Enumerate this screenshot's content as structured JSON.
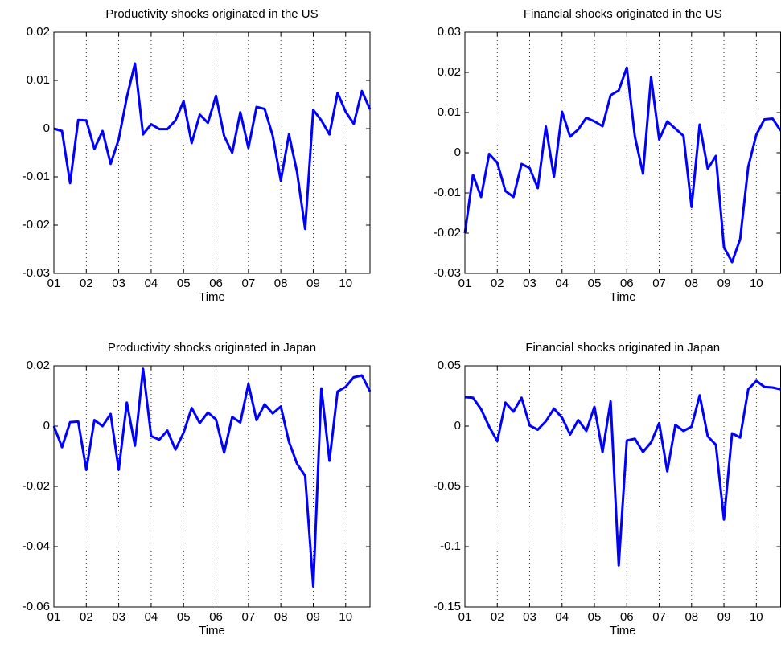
{
  "chart_data": [
    {
      "type": "line",
      "title": "Productivity shocks originated in the US",
      "x_label": "Time",
      "x": [
        1,
        1.25,
        1.5,
        1.75,
        2,
        2.25,
        2.5,
        2.75,
        3,
        3.25,
        3.5,
        3.75,
        4,
        4.25,
        4.5,
        4.75,
        5,
        5.25,
        5.5,
        5.75,
        6,
        6.25,
        6.5,
        6.75,
        7,
        7.25,
        7.5,
        7.75,
        8,
        8.25,
        8.5,
        8.75,
        9,
        9.25,
        9.5,
        9.75,
        10,
        10.25,
        10.5,
        10.75
      ],
      "values": [
        0,
        -0.0005,
        -0.0113,
        0.0018,
        0.0017,
        -0.0042,
        -0.0005,
        -0.0073,
        -0.0022,
        0.0065,
        0.0135,
        -0.0012,
        0.0009,
        -0.0001,
        -0.0001,
        0.0017,
        0.0057,
        -0.003,
        0.0029,
        0.0012,
        0.0068,
        -0.0015,
        -0.005,
        0.0034,
        -0.004,
        0.0045,
        0.0041,
        -0.0015,
        -0.0108,
        -0.0012,
        -0.009,
        -0.0208,
        0.0039,
        0.0017,
        -0.0012,
        0.0074,
        0.0035,
        0.001,
        0.0078,
        0.004
      ],
      "color": "#0000ff",
      "xlim": [
        1,
        10.75
      ],
      "xticks": [
        {
          "value": 1,
          "label": "01"
        },
        {
          "value": 2,
          "label": "02"
        },
        {
          "value": 3,
          "label": "03"
        },
        {
          "value": 4,
          "label": "04"
        },
        {
          "value": 5,
          "label": "05"
        },
        {
          "value": 6,
          "label": "06"
        },
        {
          "value": 7,
          "label": "07"
        },
        {
          "value": 8,
          "label": "08"
        },
        {
          "value": 9,
          "label": "09"
        },
        {
          "value": 10,
          "label": "10"
        }
      ],
      "ylim": [
        -0.03,
        0.02
      ],
      "yticks": [
        -0.03,
        -0.02,
        -0.01,
        0,
        0.01,
        0.02
      ],
      "grid": true
    },
    {
      "type": "line",
      "title": "Financial shocks originated in the US",
      "x_label": "Time",
      "x": [
        1,
        1.25,
        1.5,
        1.75,
        2,
        2.25,
        2.5,
        2.75,
        3,
        3.25,
        3.5,
        3.75,
        4,
        4.25,
        4.5,
        4.75,
        5,
        5.25,
        5.5,
        5.75,
        6,
        6.25,
        6.5,
        6.75,
        7,
        7.25,
        7.5,
        7.75,
        8,
        8.25,
        8.5,
        8.75,
        9,
        9.25,
        9.5,
        9.75,
        10,
        10.25,
        10.5,
        10.75
      ],
      "values": [
        -0.02,
        -0.0055,
        -0.011,
        -0.0003,
        -0.0025,
        -0.0095,
        -0.011,
        -0.0028,
        -0.0038,
        -0.0088,
        0.0065,
        -0.006,
        0.0102,
        0.004,
        0.0058,
        0.0087,
        0.0078,
        0.0066,
        0.0143,
        0.0155,
        0.0212,
        0.004,
        -0.0052,
        0.0188,
        0.0033,
        0.0078,
        0.006,
        0.0042,
        -0.0135,
        0.007,
        -0.004,
        -0.0008,
        -0.0235,
        -0.0272,
        -0.0215,
        -0.0035,
        0.0045,
        0.0083,
        0.0085,
        0.0055
      ],
      "color": "#0000ff",
      "xlim": [
        1,
        10.75
      ],
      "xticks": [
        {
          "value": 1,
          "label": "01"
        },
        {
          "value": 2,
          "label": "02"
        },
        {
          "value": 3,
          "label": "03"
        },
        {
          "value": 4,
          "label": "04"
        },
        {
          "value": 5,
          "label": "05"
        },
        {
          "value": 6,
          "label": "06"
        },
        {
          "value": 7,
          "label": "07"
        },
        {
          "value": 8,
          "label": "08"
        },
        {
          "value": 9,
          "label": "09"
        },
        {
          "value": 10,
          "label": "10"
        }
      ],
      "ylim": [
        -0.03,
        0.03
      ],
      "yticks": [
        -0.03,
        -0.02,
        -0.01,
        0,
        0.01,
        0.02,
        0.03
      ],
      "grid": true
    },
    {
      "type": "line",
      "title": "Productivity shocks originated in Japan",
      "x_label": "Time",
      "x": [
        1,
        1.25,
        1.5,
        1.75,
        2,
        2.25,
        2.5,
        2.75,
        3,
        3.25,
        3.5,
        3.75,
        4,
        4.25,
        4.5,
        4.75,
        5,
        5.25,
        5.5,
        5.75,
        6,
        6.25,
        6.5,
        6.75,
        7,
        7.25,
        7.5,
        7.75,
        8,
        8.25,
        8.5,
        8.75,
        9,
        9.25,
        9.5,
        9.75,
        10,
        10.25,
        10.5,
        10.75
      ],
      "values": [
        0,
        -0.007,
        0.0013,
        0.0015,
        -0.0145,
        0.002,
        0,
        0.004,
        -0.0145,
        0.0078,
        -0.0065,
        0.019,
        -0.0033,
        -0.0045,
        -0.0015,
        -0.0078,
        -0.0022,
        0.006,
        0.001,
        0.0045,
        0.0022,
        -0.0088,
        0.003,
        0.0012,
        0.014,
        0.002,
        0.0072,
        0.0042,
        0.0065,
        -0.0052,
        -0.0125,
        -0.0165,
        -0.0532,
        0.0125,
        -0.0115,
        0.0115,
        0.013,
        0.0162,
        0.0168,
        0.0115
      ],
      "color": "#0000ff",
      "xlim": [
        1,
        10.75
      ],
      "xticks": [
        {
          "value": 1,
          "label": "01"
        },
        {
          "value": 2,
          "label": "02"
        },
        {
          "value": 3,
          "label": "03"
        },
        {
          "value": 4,
          "label": "04"
        },
        {
          "value": 5,
          "label": "05"
        },
        {
          "value": 6,
          "label": "06"
        },
        {
          "value": 7,
          "label": "07"
        },
        {
          "value": 8,
          "label": "08"
        },
        {
          "value": 9,
          "label": "09"
        },
        {
          "value": 10,
          "label": "10"
        }
      ],
      "ylim": [
        -0.06,
        0.02
      ],
      "yticks": [
        -0.06,
        -0.04,
        -0.02,
        0,
        0.02
      ],
      "grid": true
    },
    {
      "type": "line",
      "title": "Financial shocks originated in Japan",
      "x_label": "Time",
      "x": [
        1,
        1.25,
        1.5,
        1.75,
        2,
        2.25,
        2.5,
        2.75,
        3,
        3.25,
        3.5,
        3.75,
        4,
        4.25,
        4.5,
        4.75,
        5,
        5.25,
        5.5,
        5.75,
        6,
        6.25,
        6.5,
        6.75,
        7,
        7.25,
        7.5,
        7.75,
        8,
        8.25,
        8.5,
        8.75,
        9,
        9.25,
        9.5,
        9.75,
        10,
        10.25,
        10.5,
        10.75
      ],
      "values": [
        0.024,
        0.0235,
        0.014,
        -0.0005,
        -0.0125,
        0.0195,
        0.012,
        0.0235,
        0.0005,
        -0.003,
        0.004,
        0.0145,
        0.007,
        -0.007,
        0.005,
        -0.004,
        0.016,
        -0.0215,
        0.0205,
        -0.1155,
        -0.012,
        -0.0105,
        -0.0215,
        -0.0135,
        0.0025,
        -0.0375,
        0.001,
        -0.004,
        -0.0005,
        0.0255,
        -0.0085,
        -0.0155,
        -0.0775,
        -0.006,
        -0.0095,
        0.0305,
        0.0375,
        0.0325,
        0.032,
        0.0305
      ],
      "color": "#0000ff",
      "xlim": [
        1,
        10.75
      ],
      "xticks": [
        {
          "value": 1,
          "label": "01"
        },
        {
          "value": 2,
          "label": "02"
        },
        {
          "value": 3,
          "label": "03"
        },
        {
          "value": 4,
          "label": "04"
        },
        {
          "value": 5,
          "label": "05"
        },
        {
          "value": 6,
          "label": "06"
        },
        {
          "value": 7,
          "label": "07"
        },
        {
          "value": 8,
          "label": "08"
        },
        {
          "value": 9,
          "label": "09"
        },
        {
          "value": 10,
          "label": "10"
        }
      ],
      "ylim": [
        -0.15,
        0.05
      ],
      "yticks": [
        -0.15,
        -0.1,
        -0.05,
        0,
        0.05
      ],
      "grid": true
    }
  ]
}
